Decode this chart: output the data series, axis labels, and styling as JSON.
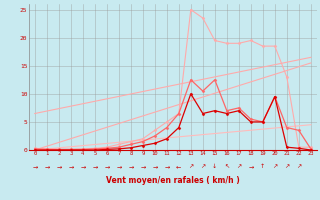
{
  "xlabel": "Vent moyen/en rafales ( km/h )",
  "x_ticks": [
    0,
    1,
    2,
    3,
    4,
    5,
    6,
    7,
    8,
    9,
    10,
    11,
    12,
    13,
    14,
    15,
    16,
    17,
    18,
    19,
    20,
    21,
    22,
    23
  ],
  "ylim": [
    0,
    26
  ],
  "yticks": [
    0,
    5,
    10,
    15,
    20,
    25
  ],
  "bg_color": "#c8eaf0",
  "grid_color": "#999999",
  "lines": [
    {
      "color": "#ffaaaa",
      "linewidth": 0.8,
      "marker": null,
      "x": [
        0,
        23
      ],
      "y": [
        6.5,
        16.5
      ]
    },
    {
      "color": "#ffaaaa",
      "linewidth": 0.8,
      "marker": null,
      "x": [
        0,
        23
      ],
      "y": [
        0.0,
        15.5
      ]
    },
    {
      "color": "#ffbbbb",
      "linewidth": 0.8,
      "marker": null,
      "x": [
        0,
        23
      ],
      "y": [
        0.0,
        4.5
      ]
    },
    {
      "color": "#ffaaaa",
      "linewidth": 0.8,
      "marker": "D",
      "markersize": 1.5,
      "x": [
        0,
        1,
        2,
        3,
        4,
        5,
        6,
        7,
        8,
        9,
        10,
        11,
        12,
        13,
        14,
        15,
        16,
        17,
        18,
        19,
        20,
        21,
        22,
        23
      ],
      "y": [
        0.3,
        0.2,
        0.1,
        0.1,
        0.2,
        0.3,
        0.5,
        1.0,
        1.5,
        2.0,
        3.5,
        5.0,
        6.5,
        25.0,
        23.5,
        19.5,
        19.0,
        19.0,
        19.5,
        18.5,
        18.5,
        13.0,
        0.5,
        0.5
      ]
    },
    {
      "color": "#ff6666",
      "linewidth": 0.9,
      "marker": "D",
      "markersize": 1.5,
      "x": [
        0,
        1,
        2,
        3,
        4,
        5,
        6,
        7,
        8,
        9,
        10,
        11,
        12,
        13,
        14,
        15,
        16,
        17,
        18,
        19,
        20,
        21,
        22,
        23
      ],
      "y": [
        0.2,
        0.1,
        0.1,
        0.1,
        0.1,
        0.2,
        0.3,
        0.5,
        1.0,
        1.5,
        2.5,
        4.0,
        6.5,
        12.5,
        10.5,
        12.5,
        7.0,
        7.5,
        5.5,
        5.0,
        9.5,
        4.0,
        3.5,
        0.2
      ]
    },
    {
      "color": "#dd0000",
      "linewidth": 0.9,
      "marker": "D",
      "markersize": 1.5,
      "x": [
        0,
        1,
        2,
        3,
        4,
        5,
        6,
        7,
        8,
        9,
        10,
        11,
        12,
        13,
        14,
        15,
        16,
        17,
        18,
        19,
        20,
        21,
        22,
        23
      ],
      "y": [
        0.0,
        0.0,
        0.0,
        0.0,
        0.0,
        0.0,
        0.1,
        0.2,
        0.4,
        0.8,
        1.2,
        2.0,
        4.0,
        10.0,
        6.5,
        7.0,
        6.5,
        7.0,
        5.0,
        5.0,
        9.5,
        0.5,
        0.3,
        0.0
      ]
    }
  ],
  "arrows": [
    "→",
    "→",
    "→",
    "→",
    "→",
    "→",
    "→",
    "→",
    "→",
    "→",
    "→",
    "→",
    "←",
    "↗",
    "↗",
    "↓",
    "↖",
    "↗",
    "→",
    "↑",
    "↗",
    "↗",
    "↗"
  ]
}
